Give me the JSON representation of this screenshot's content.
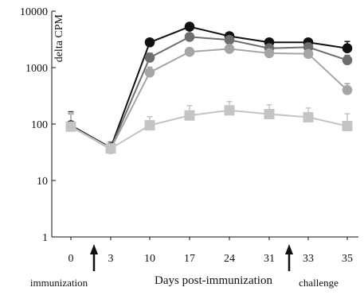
{
  "chart_data": {
    "type": "line",
    "ylabel": "delta CPM",
    "xlabel": "Days post-immunization",
    "y_scale": "log",
    "ylim": [
      1,
      10000
    ],
    "y_ticks": [
      1,
      10,
      100,
      1000,
      10000
    ],
    "y_tick_labels": [
      "1",
      "10",
      "100",
      "1000",
      "10000"
    ],
    "categories": [
      "0",
      "3",
      "10",
      "17",
      "24",
      "31",
      "33",
      "35"
    ],
    "annotations": [
      {
        "label": "immunization",
        "between_categories": [
          "0",
          "3"
        ]
      },
      {
        "label": "challenge",
        "between_categories": [
          "31",
          "33"
        ]
      }
    ],
    "series": [
      {
        "color": "#111111",
        "marker": "circle",
        "values": [
          95,
          38,
          2800,
          5300,
          3600,
          2800,
          2800,
          2200
        ],
        "err": [
          70,
          10,
          400,
          500,
          350,
          300,
          350,
          700
        ]
      },
      {
        "color": "#6e6e6e",
        "marker": "circle",
        "values": [
          92,
          37,
          1500,
          3500,
          3100,
          2200,
          2300,
          1350
        ],
        "err": [
          60,
          10,
          300,
          400,
          300,
          250,
          300,
          300
        ]
      },
      {
        "color": "#a5a5a5",
        "marker": "circle",
        "values": [
          90,
          36,
          820,
          1900,
          2150,
          1800,
          1750,
          400
        ],
        "err": [
          60,
          8,
          200,
          300,
          300,
          250,
          300,
          120
        ]
      },
      {
        "color": "#c4c4c4",
        "marker": "square",
        "values": [
          90,
          37,
          95,
          142,
          175,
          150,
          132,
          92
        ],
        "err": [
          70,
          10,
          40,
          70,
          75,
          70,
          60,
          60
        ]
      }
    ]
  }
}
